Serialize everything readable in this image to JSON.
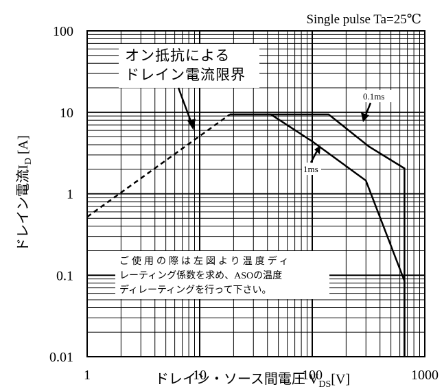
{
  "chart_data": {
    "type": "line",
    "title": "Single pulse Ta=25℃",
    "xlabel": "ドレイン・ソース間電圧 V",
    "xlabel_sub": "DS",
    "xlabel_unit": "[V]",
    "ylabel": "ドレイン電流I",
    "ylabel_sub": "D",
    "ylabel_unit": " [A]",
    "xscale": "log",
    "yscale": "log",
    "xlim": [
      1,
      1000
    ],
    "ylim": [
      0.01,
      100
    ],
    "grid": true,
    "x_ticks": [
      "1",
      "10",
      "100",
      "1000"
    ],
    "y_ticks": [
      "0.01",
      "0.1",
      "1",
      "10",
      "100"
    ],
    "series": [
      {
        "name": "0.1ms",
        "style": "solid",
        "x": [
          18.5,
          140,
          320,
          660,
          660
        ],
        "y": [
          9.4,
          9.4,
          3.8,
          2.05,
          0.01
        ]
      },
      {
        "name": "1ms",
        "style": "solid",
        "x": [
          18.5,
          43,
          100,
          300,
          660,
          660
        ],
        "y": [
          9.4,
          9.4,
          4.4,
          1.45,
          0.085,
          0.01
        ]
      },
      {
        "name": "",
        "style": "dashed",
        "x": [
          1,
          18.5
        ],
        "y": [
          0.52,
          9.4
        ]
      }
    ],
    "annotations": {
      "on_resistance": [
        "オン抵抗による",
        "ドレイン電流限界"
      ],
      "label_01ms": "0.1ms",
      "label_1ms": "1ms",
      "note": [
        "ご使用の際は左図より温度ディ",
        "レーティング係数を求め、ASOの温度",
        "ディレーティングを行って下さい。"
      ]
    }
  }
}
